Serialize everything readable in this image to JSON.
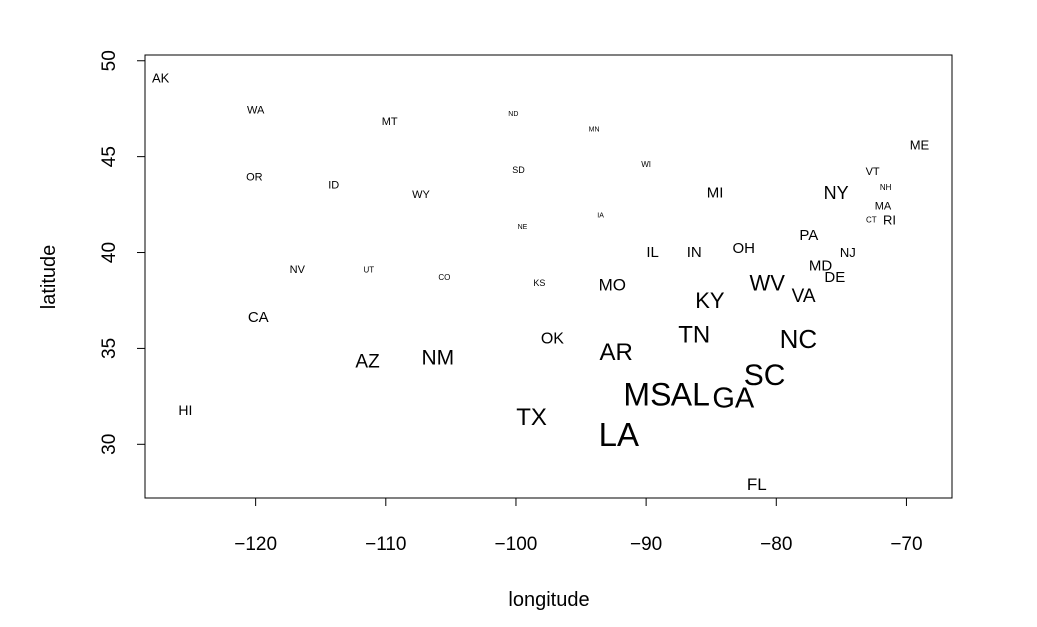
{
  "chart_data": {
    "type": "scatter",
    "title": "",
    "xlabel": "longitude",
    "ylabel": "latitude",
    "xlim": [
      -128.5,
      -66.5
    ],
    "ylim": [
      27.2,
      50.3
    ],
    "xticks": [
      -120,
      -110,
      -100,
      -90,
      -80,
      -70
    ],
    "yticks": [
      30,
      35,
      40,
      45,
      50
    ],
    "xtick_labels": [
      "−120",
      "−110",
      "−100",
      "−90",
      "−80",
      "−70"
    ],
    "ytick_labels": [
      "30",
      "35",
      "40",
      "45",
      "50"
    ],
    "grid": false,
    "legend": "none",
    "marker": "text labels sized by value",
    "points": [
      {
        "label": "AK",
        "lon": -127.3,
        "lat": 49.1,
        "size": 13
      },
      {
        "label": "WA",
        "lon": -120.0,
        "lat": 47.4,
        "size": 11
      },
      {
        "label": "MT",
        "lon": -109.7,
        "lat": 46.8,
        "size": 11
      },
      {
        "label": "ND",
        "lon": -100.2,
        "lat": 47.2,
        "size": 7
      },
      {
        "label": "MN",
        "lon": -94.0,
        "lat": 46.4,
        "size": 7
      },
      {
        "label": "ME",
        "lon": -69.0,
        "lat": 45.6,
        "size": 13
      },
      {
        "label": "OR",
        "lon": -120.1,
        "lat": 43.9,
        "size": 11
      },
      {
        "label": "ID",
        "lon": -114.0,
        "lat": 43.5,
        "size": 11
      },
      {
        "label": "WY",
        "lon": -107.3,
        "lat": 43.0,
        "size": 11
      },
      {
        "label": "SD",
        "lon": -99.8,
        "lat": 44.3,
        "size": 9
      },
      {
        "label": "WI",
        "lon": -90.0,
        "lat": 44.6,
        "size": 8
      },
      {
        "label": "MI",
        "lon": -84.7,
        "lat": 43.1,
        "size": 15
      },
      {
        "label": "NY",
        "lon": -75.4,
        "lat": 43.1,
        "size": 18
      },
      {
        "label": "VT",
        "lon": -72.6,
        "lat": 44.2,
        "size": 11
      },
      {
        "label": "NH",
        "lon": -71.6,
        "lat": 43.4,
        "size": 8
      },
      {
        "label": "MA",
        "lon": -71.8,
        "lat": 42.4,
        "size": 11
      },
      {
        "label": "CT",
        "lon": -72.7,
        "lat": 41.7,
        "size": 8
      },
      {
        "label": "RI",
        "lon": -71.3,
        "lat": 41.7,
        "size": 13
      },
      {
        "label": "IA",
        "lon": -93.5,
        "lat": 41.9,
        "size": 7
      },
      {
        "label": "NE",
        "lon": -99.5,
        "lat": 41.3,
        "size": 7
      },
      {
        "label": "PA",
        "lon": -77.5,
        "lat": 40.9,
        "size": 15
      },
      {
        "label": "NJ",
        "lon": -74.5,
        "lat": 40.0,
        "size": 13
      },
      {
        "label": "IL",
        "lon": -89.5,
        "lat": 40.0,
        "size": 15
      },
      {
        "label": "IN",
        "lon": -86.3,
        "lat": 40.0,
        "size": 15
      },
      {
        "label": "OH",
        "lon": -82.5,
        "lat": 40.2,
        "size": 15
      },
      {
        "label": "MD",
        "lon": -76.6,
        "lat": 39.3,
        "size": 15
      },
      {
        "label": "DE",
        "lon": -75.5,
        "lat": 38.7,
        "size": 15
      },
      {
        "label": "NV",
        "lon": -116.8,
        "lat": 39.1,
        "size": 11
      },
      {
        "label": "UT",
        "lon": -111.3,
        "lat": 39.1,
        "size": 8
      },
      {
        "label": "CO",
        "lon": -105.5,
        "lat": 38.7,
        "size": 8
      },
      {
        "label": "KS",
        "lon": -98.2,
        "lat": 38.4,
        "size": 9
      },
      {
        "label": "MO",
        "lon": -92.6,
        "lat": 38.3,
        "size": 17
      },
      {
        "label": "WV",
        "lon": -80.7,
        "lat": 38.4,
        "size": 22
      },
      {
        "label": "VA",
        "lon": -77.9,
        "lat": 37.7,
        "size": 19
      },
      {
        "label": "KY",
        "lon": -85.1,
        "lat": 37.5,
        "size": 22
      },
      {
        "label": "CA",
        "lon": -119.8,
        "lat": 36.6,
        "size": 15
      },
      {
        "label": "TN",
        "lon": -86.3,
        "lat": 35.7,
        "size": 24
      },
      {
        "label": "NC",
        "lon": -78.3,
        "lat": 35.5,
        "size": 26
      },
      {
        "label": "OK",
        "lon": -97.2,
        "lat": 35.5,
        "size": 16
      },
      {
        "label": "AR",
        "lon": -92.3,
        "lat": 34.8,
        "size": 24
      },
      {
        "label": "NM",
        "lon": -106.0,
        "lat": 34.5,
        "size": 21
      },
      {
        "label": "AZ",
        "lon": -111.4,
        "lat": 34.3,
        "size": 19
      },
      {
        "label": "SC",
        "lon": -80.9,
        "lat": 33.6,
        "size": 30
      },
      {
        "label": "MS",
        "lon": -89.9,
        "lat": 32.6,
        "size": 32
      },
      {
        "label": "AL",
        "lon": -86.6,
        "lat": 32.6,
        "size": 32
      },
      {
        "label": "GA",
        "lon": -83.3,
        "lat": 32.4,
        "size": 29
      },
      {
        "label": "HI",
        "lon": -125.4,
        "lat": 31.8,
        "size": 14
      },
      {
        "label": "TX",
        "lon": -98.8,
        "lat": 31.4,
        "size": 24
      },
      {
        "label": "LA",
        "lon": -92.1,
        "lat": 30.5,
        "size": 33
      },
      {
        "label": "FL",
        "lon": -81.5,
        "lat": 27.9,
        "size": 17
      }
    ]
  }
}
